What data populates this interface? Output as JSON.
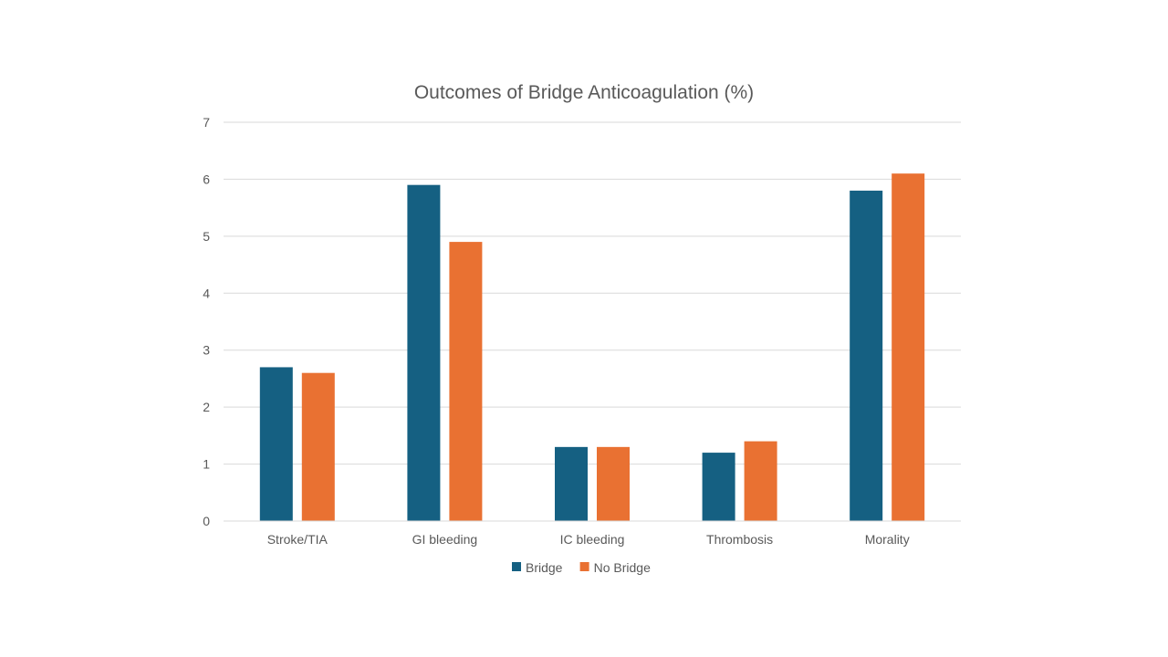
{
  "chart_data": {
    "type": "bar",
    "title": "Outcomes of Bridge Anticoagulation (%)",
    "xlabel": "",
    "ylabel": "",
    "categories": [
      "Stroke/TIA",
      "GI bleeding",
      "IC bleeding",
      "Thrombosis",
      "Morality"
    ],
    "series": [
      {
        "name": "Bridge",
        "values": [
          2.7,
          5.9,
          1.3,
          1.2,
          5.8
        ],
        "color": "#156082"
      },
      {
        "name": "No Bridge",
        "values": [
          2.6,
          4.9,
          1.3,
          1.4,
          6.1
        ],
        "color": "#E97132"
      }
    ],
    "ylim": [
      0,
      7
    ],
    "yticks": [
      0,
      1,
      2,
      3,
      4,
      5,
      6,
      7
    ],
    "grid": true,
    "legend": "bottom"
  }
}
